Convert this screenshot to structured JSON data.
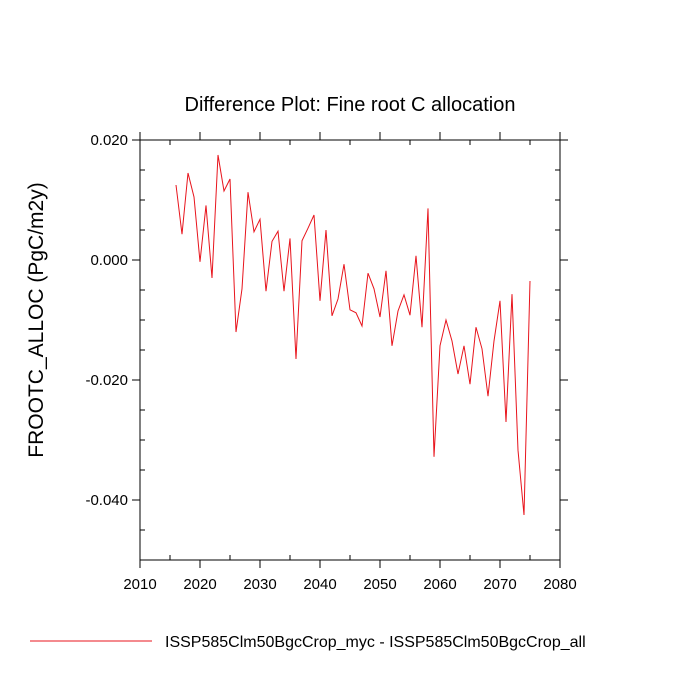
{
  "chart_data": {
    "type": "line",
    "title": "Difference Plot: Fine root C allocation",
    "xlabel": "",
    "ylabel": "FROOTC_ALLOC  (PgC/m2y)",
    "xlim": [
      2010,
      2080
    ],
    "ylim": [
      -0.05,
      0.02
    ],
    "xticks": [
      2010,
      2020,
      2030,
      2040,
      2050,
      2060,
      2070,
      2080
    ],
    "xtick_labels": [
      "2010",
      "2020",
      "2030",
      "2040",
      "2050",
      "2060",
      "2070",
      "2080"
    ],
    "yticks": [
      0.02,
      0.0,
      -0.02,
      -0.04
    ],
    "ytick_labels": [
      "0.020",
      "0.000",
      "-0.020",
      "-0.040"
    ],
    "grid": false,
    "legend_position": "bottom",
    "series": [
      {
        "name": "ISSP585Clm50BgcCrop_myc - ISSP585Clm50BgcCrop_all",
        "color": "#e8141c",
        "x": [
          2016,
          2017,
          2018,
          2019,
          2020,
          2021,
          2022,
          2023,
          2024,
          2025,
          2026,
          2027,
          2028,
          2029,
          2030,
          2031,
          2032,
          2033,
          2034,
          2035,
          2036,
          2037,
          2038,
          2039,
          2040,
          2041,
          2042,
          2043,
          2044,
          2045,
          2046,
          2047,
          2048,
          2049,
          2050,
          2051,
          2052,
          2053,
          2054,
          2055,
          2056,
          2057,
          2058,
          2059,
          2060,
          2061,
          2062,
          2063,
          2064,
          2065,
          2066,
          2067,
          2068,
          2069,
          2070,
          2071,
          2072,
          2073,
          2074,
          2075
        ],
        "y": [
          0.0125,
          0.0043,
          0.0145,
          0.0105,
          -0.0003,
          0.0091,
          -0.003,
          0.0175,
          0.0115,
          0.0135,
          -0.012,
          -0.0048,
          0.0113,
          0.0047,
          0.0068,
          -0.0052,
          0.0031,
          0.0048,
          -0.0052,
          0.0036,
          -0.0165,
          0.0032,
          0.0053,
          0.0075,
          -0.0068,
          0.005,
          -0.0093,
          -0.0065,
          -0.0007,
          -0.0083,
          -0.0088,
          -0.011,
          -0.0022,
          -0.0048,
          -0.0095,
          -0.0018,
          -0.0143,
          -0.0085,
          -0.0058,
          -0.0092,
          0.0007,
          -0.0112,
          0.0086,
          -0.0328,
          -0.0143,
          -0.01,
          -0.0135,
          -0.019,
          -0.0143,
          -0.0207,
          -0.0112,
          -0.0148,
          -0.0227,
          -0.0135,
          -0.0068,
          -0.027,
          -0.0057,
          -0.0317,
          -0.0425,
          -0.0035
        ]
      }
    ]
  }
}
